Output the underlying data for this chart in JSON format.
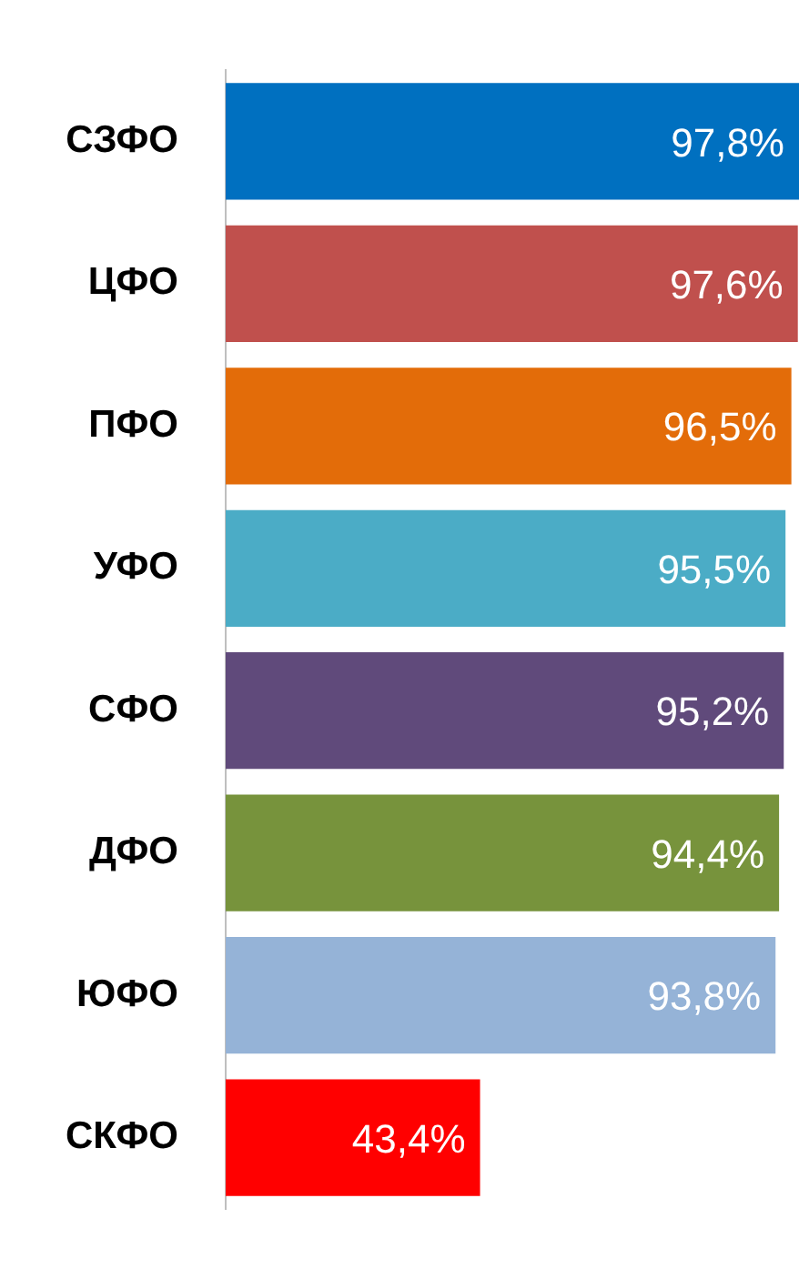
{
  "chart_data": {
    "type": "bar",
    "orientation": "horizontal",
    "categories": [
      "СЗФО",
      "ЦФО",
      "ПФО",
      "УФО",
      "СФО",
      "ДФО",
      "ЮФО",
      "СКФО"
    ],
    "values": [
      97.8,
      97.6,
      96.5,
      95.5,
      95.2,
      94.4,
      93.8,
      43.4
    ],
    "colors": [
      "#0070c0",
      "#c0504d",
      "#e36c09",
      "#4bacc6",
      "#604a7b",
      "#77933c",
      "#95b3d7",
      "#ff0000"
    ],
    "value_labels": [
      "97,8%",
      "97,6%",
      "96,5%",
      "95,5%",
      "95,2%",
      "94,4%",
      "93,8%",
      "43,4%"
    ],
    "grid": false,
    "legend": false
  }
}
